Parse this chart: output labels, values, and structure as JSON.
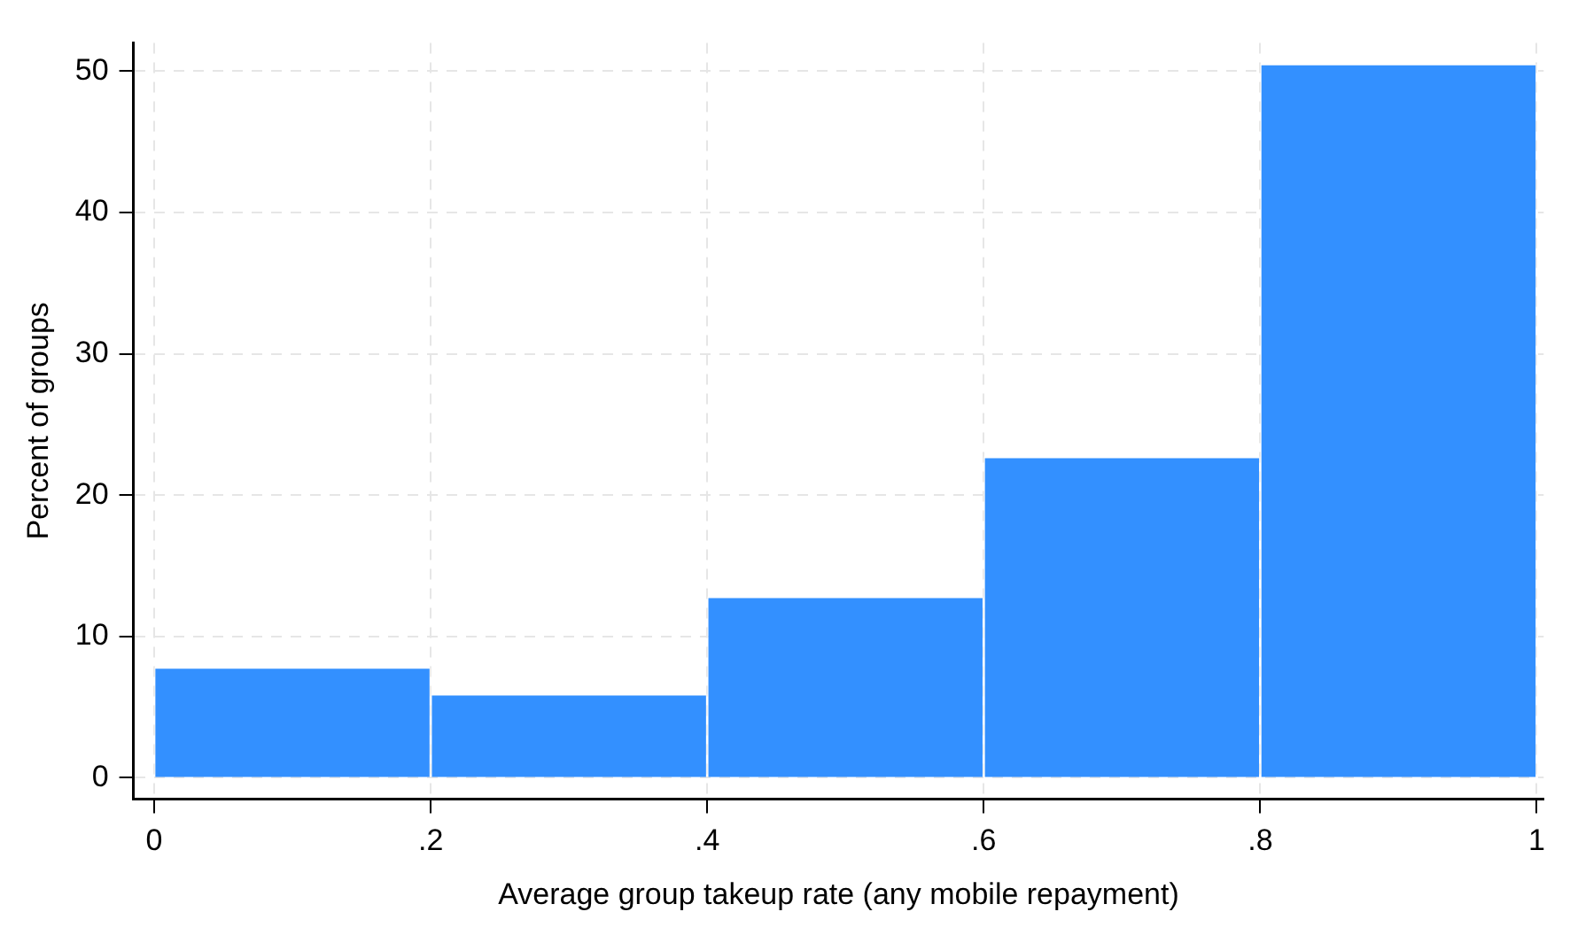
{
  "chart_data": {
    "type": "histogram",
    "xlabel": "Average group takeup rate (any mobile repayment)",
    "ylabel": "Percent of groups",
    "bins": [
      0,
      0.2,
      0.4,
      0.6,
      0.8,
      1
    ],
    "values": [
      7.8,
      5.9,
      12.8,
      22.7,
      50.5
    ],
    "color": "#3390ff",
    "xlim": [
      -0.015,
      1.005
    ],
    "ylim": [
      -1.5,
      52
    ],
    "xticks": [
      0,
      {
        "value": 0.2,
        "label": ".2"
      },
      {
        "value": 0.4,
        "label": ".4"
      },
      {
        "value": 0.6,
        "label": ".6"
      },
      {
        "value": 0.8,
        "label": ".8"
      },
      1
    ],
    "yticks": [
      0,
      10,
      20,
      30,
      40,
      50
    ],
    "grid": true
  }
}
